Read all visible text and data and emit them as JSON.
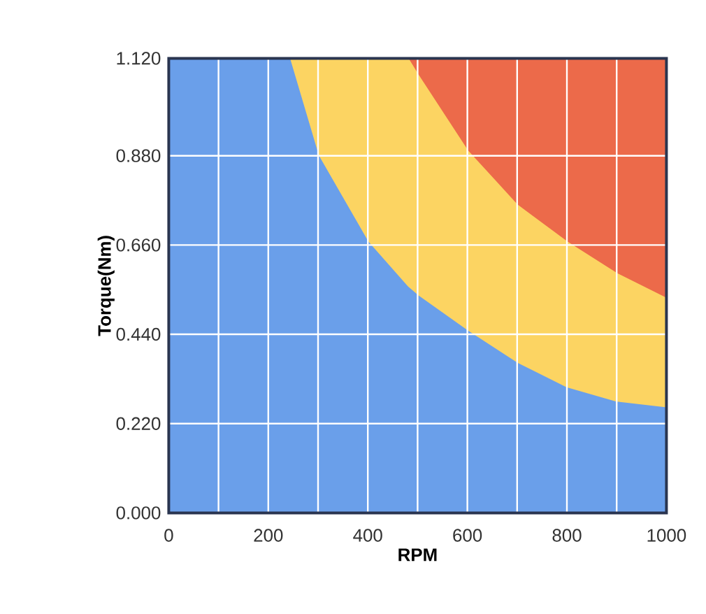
{
  "chart_data": {
    "type": "area",
    "stacked": true,
    "xlabel": "RPM",
    "ylabel": "Torque(Nm)",
    "xlim": [
      0,
      1000
    ],
    "ylim": [
      0,
      1.12
    ],
    "xticks": [
      0,
      {
        "value": 100,
        "label": null
      },
      200,
      {
        "value": 300,
        "label": null
      },
      400,
      {
        "value": 500,
        "label": null
      },
      600,
      {
        "value": 700,
        "label": null
      },
      800,
      {
        "value": 900,
        "label": null
      },
      1000
    ],
    "yticks": [
      {
        "value": 0,
        "label": "0.000"
      },
      {
        "value": 0.22,
        "label": "0.220"
      },
      {
        "value": 0.44,
        "label": "0.440"
      },
      {
        "value": 0.66,
        "label": "0.660"
      },
      {
        "value": 0.88,
        "label": "0.880"
      },
      {
        "value": 1.12,
        "label": "1.120"
      }
    ],
    "grid": true,
    "x": [
      0,
      100,
      200,
      242,
      300,
      400,
      480,
      500,
      600,
      700,
      800,
      900,
      1000
    ],
    "series": [
      {
        "color": "#6a9fea",
        "values": [
          1.12,
          1.12,
          1.12,
          1.12,
          0.88,
          0.667,
          0.556,
          0.535,
          0.448,
          0.368,
          0.307,
          0.272,
          0.258
        ]
      },
      {
        "color": "#fcd462",
        "values": [
          0,
          0,
          0,
          0,
          0.24,
          0.453,
          0.564,
          0.545,
          0.444,
          0.39,
          0.36,
          0.317,
          0.27
        ]
      },
      {
        "color": "#ec6a4a",
        "values": [
          0,
          0,
          0,
          0,
          0,
          0,
          0,
          0.04,
          0.228,
          0.362,
          0.453,
          0.531,
          0.592
        ]
      }
    ]
  }
}
